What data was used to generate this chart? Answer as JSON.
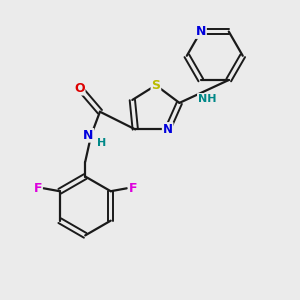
{
  "background_color": "#ebebeb",
  "bond_color": "#1a1a1a",
  "atom_colors": {
    "N": "#0000dd",
    "O": "#dd0000",
    "S": "#bbbb00",
    "F": "#dd00dd",
    "C": "#1a1a1a",
    "H": "#008888"
  },
  "figsize": [
    3.0,
    3.0
  ],
  "dpi": 100
}
